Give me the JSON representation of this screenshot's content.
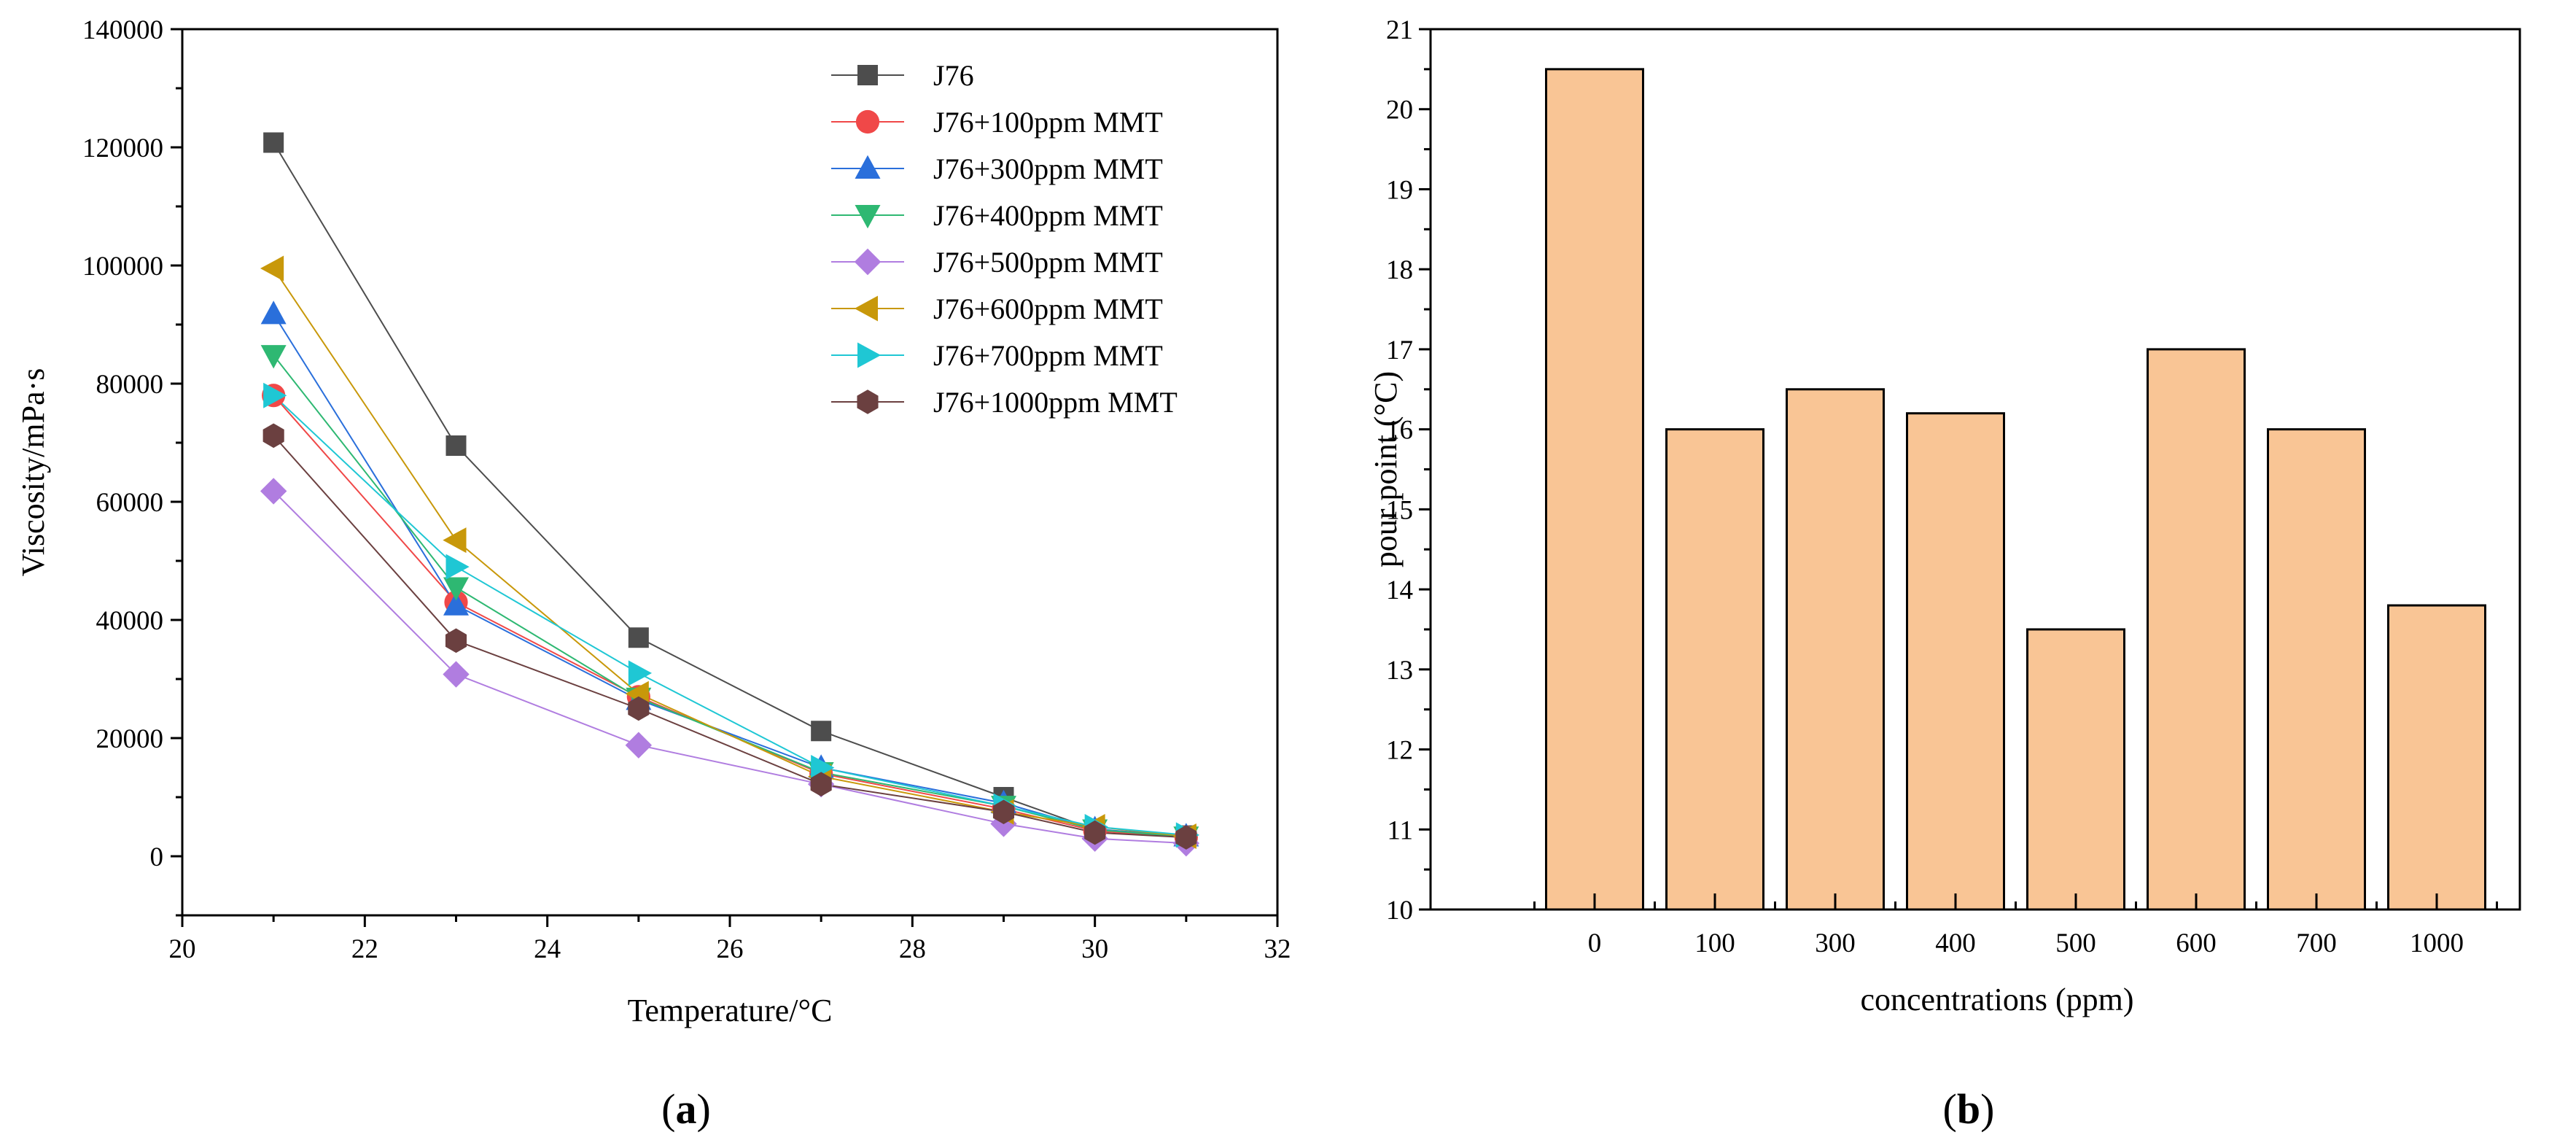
{
  "chart_data": [
    {
      "type": "line",
      "panel_label": {
        "open": "(",
        "letter": "a",
        "close": ")"
      },
      "xlabel": "Temperature/°C",
      "ylabel": "Viscosity/mPa·s",
      "xlim": [
        20,
        32
      ],
      "ylim": [
        -10000,
        140000
      ],
      "x_ticks": [
        20,
        22,
        24,
        26,
        28,
        30,
        32
      ],
      "y_ticks": [
        0,
        20000,
        40000,
        60000,
        80000,
        100000,
        120000,
        140000
      ],
      "x": [
        21,
        23,
        25,
        27,
        29,
        30,
        31
      ],
      "legend_position": "top-right",
      "series": [
        {
          "name": "J76",
          "marker": "square",
          "color": "#4d4d4d",
          "values": [
            120800,
            69500,
            37000,
            21200,
            10000,
            4500,
            3500
          ]
        },
        {
          "name": "J76+100ppm MMT",
          "marker": "circle",
          "color": "#f04848",
          "values": [
            78000,
            43000,
            27000,
            14000,
            8000,
            4300,
            3200
          ]
        },
        {
          "name": "J76+300ppm MMT",
          "marker": "triangle-up",
          "color": "#2a6fdb",
          "values": [
            91800,
            42500,
            26500,
            15000,
            9000,
            4600,
            3400
          ]
        },
        {
          "name": "J76+400ppm MMT",
          "marker": "triangle-down",
          "color": "#2eb872",
          "values": [
            84800,
            45500,
            26800,
            14200,
            8500,
            4500,
            3300
          ]
        },
        {
          "name": "J76+500ppm MMT",
          "marker": "diamond",
          "color": "#b07de0",
          "values": [
            61800,
            30800,
            18800,
            12200,
            5500,
            3000,
            2200
          ]
        },
        {
          "name": "J76+600ppm MMT",
          "marker": "triangle-left",
          "color": "#c8980a",
          "values": [
            99500,
            53500,
            27500,
            13500,
            7500,
            5000,
            3400
          ]
        },
        {
          "name": "J76+700ppm MMT",
          "marker": "triangle-right",
          "color": "#1fc7d4",
          "values": [
            78000,
            49000,
            31000,
            15000,
            8500,
            5000,
            3600
          ]
        },
        {
          "name": "J76+1000ppm MMT",
          "marker": "hexagon",
          "color": "#6b4040",
          "values": [
            71200,
            36500,
            25000,
            12200,
            7500,
            4000,
            3200
          ]
        }
      ]
    },
    {
      "type": "bar",
      "panel_label": {
        "open": "(",
        "letter": "b",
        "close": ")"
      },
      "xlabel": "concentrations (ppm)",
      "ylabel": "pour point (°C)",
      "ylim": [
        10,
        21
      ],
      "y_ticks": [
        10,
        11,
        12,
        13,
        14,
        15,
        16,
        17,
        18,
        19,
        20,
        21
      ],
      "categories": [
        "0",
        "100",
        "300",
        "400",
        "500",
        "600",
        "700",
        "1000"
      ],
      "values": [
        20.5,
        16.0,
        16.5,
        16.2,
        13.5,
        17.0,
        16.0,
        13.8
      ],
      "bar_color": "#f9c595"
    }
  ]
}
